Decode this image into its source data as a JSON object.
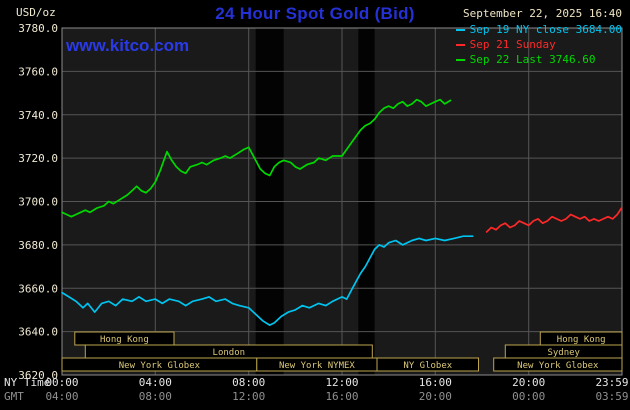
{
  "header": {
    "unit": "USD/oz",
    "title": "24 Hour Spot Gold (Bid)",
    "datetime": "September 22, 2025 16:40",
    "watermark": "www.kitco.com"
  },
  "axes": {
    "ny_label": "NY Time",
    "gmt_label": "GMT",
    "y_ticks": [
      "3780.0",
      "3760.0",
      "3740.0",
      "3720.0",
      "3700.0",
      "3680.0",
      "3660.0",
      "3640.0",
      "3620.0"
    ],
    "x_ticks_ny": [
      "00:00",
      "04:00",
      "08:00",
      "12:00",
      "16:00",
      "20:00",
      "23:59"
    ],
    "x_ticks_gmt": [
      "04:00",
      "08:00",
      "12:00",
      "16:00",
      "20:00",
      "00:00",
      "03:59"
    ]
  },
  "legend": [
    {
      "label": "Sep 19 NY close 3684.00",
      "color": "#00c4f0"
    },
    {
      "label": "Sep 21 Sunday",
      "color": "#ff2828"
    },
    {
      "label": "Sep 22 Last 3746.60",
      "color": "#00d800"
    }
  ],
  "sessions": [
    {
      "row": 0,
      "label": "Hong Kong",
      "start": 0.55,
      "end": 4.8
    },
    {
      "row": 0,
      "label": "Hong Kong",
      "start": 20.5,
      "end": 24.0
    },
    {
      "row": 1,
      "label": "London",
      "start": 1.0,
      "end": 13.3
    },
    {
      "row": 1,
      "label": "Sydney",
      "start": 19.0,
      "end": 24.0
    },
    {
      "row": 2,
      "label": "New York Globex",
      "start": 0.0,
      "end": 8.35
    },
    {
      "row": 2,
      "label": "New York NYMEX",
      "start": 8.35,
      "end": 13.5
    },
    {
      "row": 2,
      "label": "NY Globex",
      "start": 13.5,
      "end": 17.85
    },
    {
      "row": 2,
      "label": "New York Globex",
      "start": 18.5,
      "end": 24.0
    }
  ],
  "chart_data": {
    "type": "line",
    "title": "24 Hour Spot Gold (Bid)",
    "ylabel": "USD/oz",
    "ylim": [
      3620,
      3780
    ],
    "ytick_step": 20,
    "xlim_hours": [
      0,
      24
    ],
    "xtick_hours": [
      0,
      4,
      8,
      12,
      16,
      20,
      24
    ],
    "grid": true,
    "legend_position": "top-right",
    "shade_bands_hours": [
      [
        8.3,
        9.5
      ],
      [
        12.7,
        13.4
      ]
    ],
    "series": [
      {
        "id": "sep19",
        "name": "Sep 19 NY close",
        "close": 3684.0,
        "color": "#00c4f0",
        "points": [
          [
            0,
            3658
          ],
          [
            0.3,
            3656
          ],
          [
            0.6,
            3654
          ],
          [
            0.9,
            3651
          ],
          [
            1.1,
            3653
          ],
          [
            1.4,
            3649
          ],
          [
            1.7,
            3653
          ],
          [
            2,
            3654
          ],
          [
            2.3,
            3652
          ],
          [
            2.6,
            3655
          ],
          [
            3,
            3654
          ],
          [
            3.3,
            3656
          ],
          [
            3.6,
            3654
          ],
          [
            4,
            3655
          ],
          [
            4.3,
            3653
          ],
          [
            4.6,
            3655
          ],
          [
            5,
            3654
          ],
          [
            5.3,
            3652
          ],
          [
            5.6,
            3654
          ],
          [
            6,
            3655
          ],
          [
            6.3,
            3656
          ],
          [
            6.6,
            3654
          ],
          [
            7,
            3655
          ],
          [
            7.3,
            3653
          ],
          [
            7.6,
            3652
          ],
          [
            8,
            3651
          ],
          [
            8.3,
            3648
          ],
          [
            8.6,
            3645
          ],
          [
            8.9,
            3643
          ],
          [
            9.1,
            3644
          ],
          [
            9.4,
            3647
          ],
          [
            9.7,
            3649
          ],
          [
            10,
            3650
          ],
          [
            10.3,
            3652
          ],
          [
            10.6,
            3651
          ],
          [
            11,
            3653
          ],
          [
            11.3,
            3652
          ],
          [
            11.6,
            3654
          ],
          [
            12,
            3656
          ],
          [
            12.2,
            3655
          ],
          [
            12.4,
            3659
          ],
          [
            12.6,
            3663
          ],
          [
            12.8,
            3667
          ],
          [
            13,
            3670
          ],
          [
            13.2,
            3674
          ],
          [
            13.4,
            3678
          ],
          [
            13.6,
            3680
          ],
          [
            13.8,
            3679
          ],
          [
            14,
            3681
          ],
          [
            14.3,
            3682
          ],
          [
            14.6,
            3680
          ],
          [
            15,
            3682
          ],
          [
            15.3,
            3683
          ],
          [
            15.6,
            3682
          ],
          [
            16,
            3683
          ],
          [
            16.4,
            3682
          ],
          [
            16.8,
            3683
          ],
          [
            17.2,
            3684
          ],
          [
            17.6,
            3684
          ]
        ]
      },
      {
        "id": "sep21",
        "name": "Sep 21 Sunday",
        "color": "#ff2828",
        "points": [
          [
            18.2,
            3686
          ],
          [
            18.4,
            3688
          ],
          [
            18.6,
            3687
          ],
          [
            18.8,
            3689
          ],
          [
            19,
            3690
          ],
          [
            19.2,
            3688
          ],
          [
            19.4,
            3689
          ],
          [
            19.6,
            3691
          ],
          [
            19.8,
            3690
          ],
          [
            20,
            3689
          ],
          [
            20.2,
            3691
          ],
          [
            20.4,
            3692
          ],
          [
            20.6,
            3690
          ],
          [
            20.8,
            3691
          ],
          [
            21,
            3693
          ],
          [
            21.2,
            3692
          ],
          [
            21.4,
            3691
          ],
          [
            21.6,
            3692
          ],
          [
            21.8,
            3694
          ],
          [
            22,
            3693
          ],
          [
            22.2,
            3692
          ],
          [
            22.4,
            3693
          ],
          [
            22.6,
            3691
          ],
          [
            22.8,
            3692
          ],
          [
            23,
            3691
          ],
          [
            23.2,
            3692
          ],
          [
            23.4,
            3693
          ],
          [
            23.6,
            3692
          ],
          [
            23.8,
            3694
          ],
          [
            23.98,
            3697
          ]
        ]
      },
      {
        "id": "sep22",
        "name": "Sep 22 Last",
        "last": 3746.6,
        "color": "#00d800",
        "points": [
          [
            0,
            3695
          ],
          [
            0.2,
            3694
          ],
          [
            0.4,
            3693
          ],
          [
            0.6,
            3694
          ],
          [
            0.8,
            3695
          ],
          [
            1,
            3696
          ],
          [
            1.2,
            3695
          ],
          [
            1.5,
            3697
          ],
          [
            1.8,
            3698
          ],
          [
            2,
            3700
          ],
          [
            2.2,
            3699
          ],
          [
            2.5,
            3701
          ],
          [
            2.8,
            3703
          ],
          [
            3,
            3705
          ],
          [
            3.2,
            3707
          ],
          [
            3.4,
            3705
          ],
          [
            3.6,
            3704
          ],
          [
            3.8,
            3706
          ],
          [
            4,
            3709
          ],
          [
            4.2,
            3714
          ],
          [
            4.4,
            3720
          ],
          [
            4.5,
            3723
          ],
          [
            4.7,
            3719
          ],
          [
            4.9,
            3716
          ],
          [
            5.1,
            3714
          ],
          [
            5.3,
            3713
          ],
          [
            5.5,
            3716
          ],
          [
            5.8,
            3717
          ],
          [
            6,
            3718
          ],
          [
            6.2,
            3717
          ],
          [
            6.5,
            3719
          ],
          [
            6.8,
            3720
          ],
          [
            7,
            3721
          ],
          [
            7.2,
            3720
          ],
          [
            7.5,
            3722
          ],
          [
            7.8,
            3724
          ],
          [
            8,
            3725
          ],
          [
            8.1,
            3723
          ],
          [
            8.3,
            3719
          ],
          [
            8.5,
            3715
          ],
          [
            8.7,
            3713
          ],
          [
            8.9,
            3712
          ],
          [
            9.1,
            3716
          ],
          [
            9.3,
            3718
          ],
          [
            9.5,
            3719
          ],
          [
            9.8,
            3718
          ],
          [
            10,
            3716
          ],
          [
            10.2,
            3715
          ],
          [
            10.5,
            3717
          ],
          [
            10.8,
            3718
          ],
          [
            11,
            3720
          ],
          [
            11.3,
            3719
          ],
          [
            11.6,
            3721
          ],
          [
            12,
            3721
          ],
          [
            12.2,
            3724
          ],
          [
            12.4,
            3727
          ],
          [
            12.6,
            3730
          ],
          [
            12.8,
            3733
          ],
          [
            13,
            3735
          ],
          [
            13.2,
            3736
          ],
          [
            13.4,
            3738
          ],
          [
            13.6,
            3741
          ],
          [
            13.8,
            3743
          ],
          [
            14,
            3744
          ],
          [
            14.2,
            3743
          ],
          [
            14.4,
            3745
          ],
          [
            14.6,
            3746
          ],
          [
            14.8,
            3744
          ],
          [
            15,
            3745
          ],
          [
            15.2,
            3747
          ],
          [
            15.4,
            3746
          ],
          [
            15.6,
            3744
          ],
          [
            15.8,
            3745
          ],
          [
            16,
            3746
          ],
          [
            16.2,
            3747
          ],
          [
            16.4,
            3745
          ],
          [
            16.65,
            3746.6
          ]
        ]
      }
    ]
  },
  "colors": {
    "background": "#000000",
    "plot_background": "#1a1a1a",
    "shade_band": "#030303",
    "grid": "#555555",
    "plot_border": "#8c8c8c",
    "axis_text": "#efe9d2",
    "ny_time_text": "#e6e6e6",
    "gmt_text": "#909090",
    "title_blue": "#2531d6",
    "watermark_blue": "#2a3ae8",
    "date_text": "#f0e6c4",
    "session_border": "#bda44e",
    "session_text": "#dbc878"
  }
}
